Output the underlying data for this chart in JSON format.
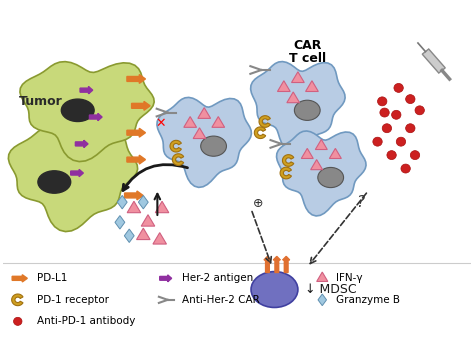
{
  "bg_color": "#ffffff",
  "tumor_color": "#c8d97a",
  "tumor_outline": "#8a9a30",
  "tcell_color": "#b8cce4",
  "tcell_outline": "#7099c0",
  "mdsc_body_color": "#7070c0",
  "mdsc_receptor_color": "#e07030",
  "nucleus_color": "#2a2a2a",
  "tcell_nucleus_color": "#888888",
  "pdl1_color": "#e07828",
  "her2_color": "#9030a0",
  "ifn_color": "#f090a0",
  "granzyme_color": "#a0c8e0",
  "antibody_color": "#cc2020",
  "pd1_color": "#d0a020",
  "arrow_color": "#1a1a1a",
  "tumor_text": "Tumor",
  "car_label_1": "CAR",
  "car_label_2": "T cell",
  "mdsc_text": "↓ MDSC",
  "figsize": [
    4.74,
    3.64
  ],
  "dpi": 100
}
